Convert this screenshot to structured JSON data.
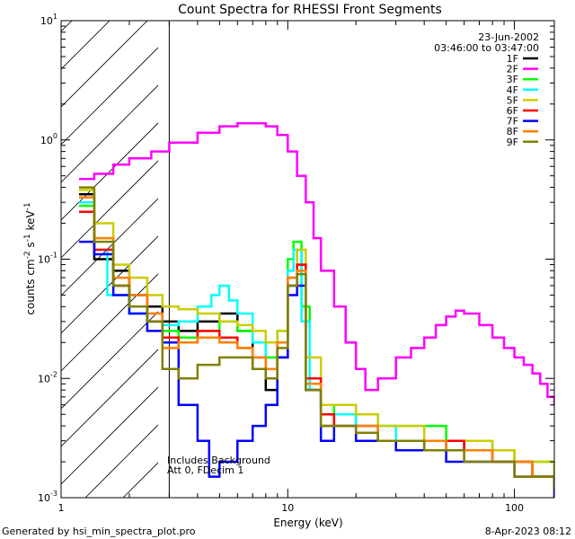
{
  "chart_data": {
    "type": "line",
    "title": "Count Spectra for RHESSI Front Segments",
    "xlabel": "Energy (keV)",
    "ylabel_base": "counts cm",
    "ylabel_sup1": "-2",
    "ylabel_mid": " s",
    "ylabel_sup2": "-1",
    "ylabel_tail": " keV",
    "ylabel_sup3": "-1",
    "x_scale": "log",
    "y_scale": "log",
    "xlim": [
      1,
      150
    ],
    "ylim": [
      0.001,
      10
    ],
    "x_ticks": [
      {
        "value": 1,
        "label": "1"
      },
      {
        "value": 10,
        "label": "10"
      },
      {
        "value": 100,
        "label": "100"
      }
    ],
    "y_ticks": [
      {
        "value": 0.001,
        "base": "10",
        "exp": "-3"
      },
      {
        "value": 0.01,
        "base": "10",
        "exp": "-2"
      },
      {
        "value": 0.1,
        "base": "10",
        "exp": "-1"
      },
      {
        "value": 1,
        "base": "10",
        "exp": "0"
      },
      {
        "value": 10,
        "base": "10",
        "exp": "1"
      }
    ],
    "hatched_region_max_energy": 3,
    "date": "23-Jun-2002",
    "time_range": "03:46:00 to 03:47:00",
    "annotations": [
      "Includes Background",
      "Att 0, FDecim 1"
    ],
    "footer_left": "Generated by hsi_min_spectra_plot.pro",
    "footer_right": "8-Apr-2023 08:12",
    "series": [
      {
        "name": "1F",
        "color": "#000000",
        "points": [
          [
            1.2,
            0.35
          ],
          [
            1.4,
            0.1
          ],
          [
            1.7,
            0.08
          ],
          [
            2.0,
            0.05
          ],
          [
            2.4,
            0.04
          ],
          [
            2.8,
            0.03
          ],
          [
            3.3,
            0.025
          ],
          [
            4.0,
            0.03
          ],
          [
            5.0,
            0.035
          ],
          [
            6.0,
            0.025
          ],
          [
            7.0,
            0.012
          ],
          [
            8.0,
            0.008
          ],
          [
            9.0,
            0.015
          ],
          [
            10.0,
            0.06
          ],
          [
            11.0,
            0.09
          ],
          [
            12.0,
            0.008
          ],
          [
            14,
            0.004
          ],
          [
            16,
            0.005
          ],
          [
            20,
            0.004
          ],
          [
            25,
            0.003
          ],
          [
            30,
            0.003
          ],
          [
            40,
            0.0025
          ],
          [
            50,
            0.003
          ],
          [
            60,
            0.0025
          ],
          [
            80,
            0.002
          ],
          [
            100,
            0.002
          ],
          [
            120,
            0.0015
          ],
          [
            150,
            0.0012
          ]
        ]
      },
      {
        "name": "2F",
        "color": "#ff00ff",
        "points": [
          [
            1.2,
            0.47
          ],
          [
            1.4,
            0.52
          ],
          [
            1.7,
            0.62
          ],
          [
            2.0,
            0.7
          ],
          [
            2.5,
            0.8
          ],
          [
            3.0,
            0.95
          ],
          [
            4.0,
            1.15
          ],
          [
            5.0,
            1.3
          ],
          [
            6.0,
            1.38
          ],
          [
            7.0,
            1.38
          ],
          [
            8.0,
            1.3
          ],
          [
            9.0,
            1.1
          ],
          [
            10.0,
            0.8
          ],
          [
            11.0,
            0.5
          ],
          [
            12.0,
            0.3
          ],
          [
            13.0,
            0.15
          ],
          [
            14.0,
            0.08
          ],
          [
            16.0,
            0.04
          ],
          [
            18.0,
            0.02
          ],
          [
            20.0,
            0.012
          ],
          [
            22.0,
            0.008
          ],
          [
            25.0,
            0.01
          ],
          [
            30.0,
            0.015
          ],
          [
            35.0,
            0.018
          ],
          [
            40.0,
            0.022
          ],
          [
            45.0,
            0.028
          ],
          [
            50.0,
            0.033
          ],
          [
            55.0,
            0.037
          ],
          [
            60.0,
            0.035
          ],
          [
            70.0,
            0.028
          ],
          [
            80.0,
            0.022
          ],
          [
            90.0,
            0.018
          ],
          [
            100.0,
            0.015
          ],
          [
            110.0,
            0.013
          ],
          [
            120.0,
            0.011
          ],
          [
            130.0,
            0.009
          ],
          [
            140.0,
            0.007
          ],
          [
            150.0,
            0.006
          ]
        ]
      },
      {
        "name": "3F",
        "color": "#00ff00",
        "points": [
          [
            1.2,
            0.28
          ],
          [
            1.4,
            0.15
          ],
          [
            1.7,
            0.06
          ],
          [
            2.0,
            0.04
          ],
          [
            2.4,
            0.03
          ],
          [
            2.8,
            0.025
          ],
          [
            3.3,
            0.022
          ],
          [
            4.0,
            0.025
          ],
          [
            5.0,
            0.03
          ],
          [
            6.0,
            0.025
          ],
          [
            7.0,
            0.02
          ],
          [
            8.0,
            0.015
          ],
          [
            9.0,
            0.025
          ],
          [
            10.0,
            0.1
          ],
          [
            10.6,
            0.14
          ],
          [
            11.5,
            0.04
          ],
          [
            12.5,
            0.01
          ],
          [
            14,
            0.006
          ],
          [
            16,
            0.005
          ],
          [
            20,
            0.005
          ],
          [
            25,
            0.004
          ],
          [
            30,
            0.004
          ],
          [
            40,
            0.004
          ],
          [
            50,
            0.003
          ],
          [
            60,
            0.003
          ],
          [
            80,
            0.0025
          ],
          [
            100,
            0.002
          ],
          [
            120,
            0.002
          ],
          [
            150,
            0.0015
          ]
        ]
      },
      {
        "name": "4F",
        "color": "#00ffff",
        "points": [
          [
            1.2,
            0.3
          ],
          [
            1.4,
            0.12
          ],
          [
            1.6,
            0.05
          ],
          [
            2.0,
            0.035
          ],
          [
            2.4,
            0.03
          ],
          [
            2.8,
            0.028
          ],
          [
            3.3,
            0.03
          ],
          [
            4.0,
            0.04
          ],
          [
            4.6,
            0.05
          ],
          [
            5.0,
            0.06
          ],
          [
            5.5,
            0.045
          ],
          [
            6.0,
            0.035
          ],
          [
            7.0,
            0.02
          ],
          [
            8.0,
            0.012
          ],
          [
            9.0,
            0.02
          ],
          [
            10.0,
            0.08
          ],
          [
            10.6,
            0.12
          ],
          [
            11.5,
            0.03
          ],
          [
            12.5,
            0.008
          ],
          [
            14,
            0.005
          ],
          [
            16,
            0.005
          ],
          [
            20,
            0.004
          ],
          [
            25,
            0.004
          ],
          [
            30,
            0.003
          ],
          [
            40,
            0.003
          ],
          [
            50,
            0.003
          ],
          [
            60,
            0.003
          ],
          [
            80,
            0.002
          ],
          [
            100,
            0.002
          ],
          [
            120,
            0.0015
          ],
          [
            150,
            0.0012
          ]
        ]
      },
      {
        "name": "5F",
        "color": "#cccc00",
        "points": [
          [
            1.2,
            0.38
          ],
          [
            1.4,
            0.2
          ],
          [
            1.7,
            0.09
          ],
          [
            2.0,
            0.07
          ],
          [
            2.4,
            0.05
          ],
          [
            2.8,
            0.04
          ],
          [
            3.3,
            0.038
          ],
          [
            4.0,
            0.035
          ],
          [
            5.0,
            0.03
          ],
          [
            6.0,
            0.028
          ],
          [
            7.0,
            0.025
          ],
          [
            8.0,
            0.02
          ],
          [
            9.0,
            0.025
          ],
          [
            10.0,
            0.07
          ],
          [
            11.0,
            0.12
          ],
          [
            12.0,
            0.015
          ],
          [
            14,
            0.006
          ],
          [
            16,
            0.006
          ],
          [
            20,
            0.005
          ],
          [
            25,
            0.004
          ],
          [
            30,
            0.004
          ],
          [
            40,
            0.003
          ],
          [
            50,
            0.003
          ],
          [
            60,
            0.003
          ],
          [
            80,
            0.0025
          ],
          [
            100,
            0.002
          ],
          [
            120,
            0.002
          ],
          [
            150,
            0.0015
          ]
        ]
      },
      {
        "name": "6F",
        "color": "#ff0000",
        "points": [
          [
            1.2,
            0.25
          ],
          [
            1.4,
            0.12
          ],
          [
            1.7,
            0.06
          ],
          [
            2.0,
            0.04
          ],
          [
            2.4,
            0.03
          ],
          [
            2.8,
            0.022
          ],
          [
            3.3,
            0.02
          ],
          [
            4.0,
            0.025
          ],
          [
            5.0,
            0.022
          ],
          [
            6.0,
            0.018
          ],
          [
            7.0,
            0.015
          ],
          [
            8.0,
            0.012
          ],
          [
            9.0,
            0.02
          ],
          [
            10.0,
            0.07
          ],
          [
            11.0,
            0.09
          ],
          [
            12.0,
            0.01
          ],
          [
            14,
            0.005
          ],
          [
            16,
            0.004
          ],
          [
            20,
            0.004
          ],
          [
            25,
            0.003
          ],
          [
            30,
            0.003
          ],
          [
            40,
            0.003
          ],
          [
            50,
            0.003
          ],
          [
            60,
            0.0025
          ],
          [
            80,
            0.002
          ],
          [
            100,
            0.002
          ],
          [
            120,
            0.0015
          ],
          [
            150,
            0.0012
          ]
        ]
      },
      {
        "name": "7F",
        "color": "#0000ff",
        "points": [
          [
            1.2,
            0.14
          ],
          [
            1.4,
            0.11
          ],
          [
            1.7,
            0.05
          ],
          [
            2.0,
            0.035
          ],
          [
            2.4,
            0.025
          ],
          [
            2.8,
            0.02
          ],
          [
            3.3,
            0.006
          ],
          [
            4.0,
            0.003
          ],
          [
            4.5,
            0.0015
          ],
          [
            5.0,
            0.002
          ],
          [
            6.0,
            0.003
          ],
          [
            7.0,
            0.004
          ],
          [
            8.0,
            0.006
          ],
          [
            9.0,
            0.015
          ],
          [
            10.0,
            0.05
          ],
          [
            11.0,
            0.06
          ],
          [
            12.0,
            0.008
          ],
          [
            14,
            0.003
          ],
          [
            16,
            0.004
          ],
          [
            20,
            0.003
          ],
          [
            25,
            0.003
          ],
          [
            30,
            0.0025
          ],
          [
            40,
            0.0025
          ],
          [
            50,
            0.002
          ],
          [
            60,
            0.002
          ],
          [
            80,
            0.002
          ],
          [
            100,
            0.0015
          ],
          [
            120,
            0.0015
          ],
          [
            150,
            0.001
          ]
        ]
      },
      {
        "name": "8F",
        "color": "#ff8000",
        "points": [
          [
            1.2,
            0.33
          ],
          [
            1.4,
            0.15
          ],
          [
            1.7,
            0.07
          ],
          [
            2.0,
            0.05
          ],
          [
            2.4,
            0.035
          ],
          [
            2.8,
            0.018
          ],
          [
            3.3,
            0.02
          ],
          [
            4.0,
            0.022
          ],
          [
            5.0,
            0.02
          ],
          [
            6.0,
            0.018
          ],
          [
            7.0,
            0.015
          ],
          [
            8.0,
            0.012
          ],
          [
            9.0,
            0.02
          ],
          [
            10.0,
            0.07
          ],
          [
            11.0,
            0.08
          ],
          [
            12.0,
            0.009
          ],
          [
            14,
            0.004
          ],
          [
            16,
            0.004
          ],
          [
            20,
            0.004
          ],
          [
            25,
            0.003
          ],
          [
            30,
            0.003
          ],
          [
            40,
            0.003
          ],
          [
            50,
            0.0025
          ],
          [
            60,
            0.0025
          ],
          [
            80,
            0.002
          ],
          [
            100,
            0.002
          ],
          [
            120,
            0.0015
          ],
          [
            150,
            0.0012
          ]
        ]
      },
      {
        "name": "9F",
        "color": "#808000",
        "points": [
          [
            1.2,
            0.4
          ],
          [
            1.4,
            0.14
          ],
          [
            1.7,
            0.06
          ],
          [
            2.0,
            0.04
          ],
          [
            2.4,
            0.03
          ],
          [
            2.8,
            0.012
          ],
          [
            3.3,
            0.01
          ],
          [
            4.0,
            0.013
          ],
          [
            5.0,
            0.015
          ],
          [
            6.0,
            0.015
          ],
          [
            7.0,
            0.012
          ],
          [
            8.0,
            0.01
          ],
          [
            9.0,
            0.018
          ],
          [
            10.0,
            0.06
          ],
          [
            11.0,
            0.075
          ],
          [
            12.0,
            0.008
          ],
          [
            14,
            0.004
          ],
          [
            16,
            0.004
          ],
          [
            20,
            0.0035
          ],
          [
            25,
            0.003
          ],
          [
            30,
            0.003
          ],
          [
            40,
            0.0025
          ],
          [
            50,
            0.0025
          ],
          [
            60,
            0.002
          ],
          [
            80,
            0.002
          ],
          [
            100,
            0.0015
          ],
          [
            120,
            0.0015
          ],
          [
            150,
            0.0012
          ]
        ]
      }
    ]
  }
}
